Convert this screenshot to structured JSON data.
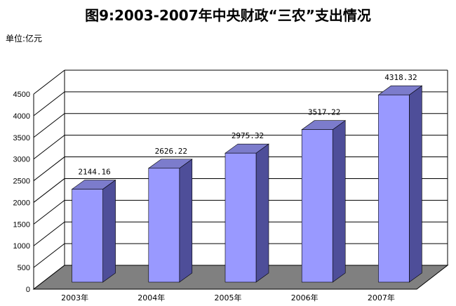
{
  "title": "图9:2003-2007年中央财政“三农”支出情况",
  "unit_label": "单位:亿元",
  "chart_data": {
    "type": "bar",
    "categories": [
      "2003年",
      "2004年",
      "2005年",
      "2006年",
      "2007年"
    ],
    "values": [
      2144.16,
      2626.22,
      2975.32,
      3517.22,
      4318.32
    ],
    "data_labels": [
      "2144.16",
      "2626.22",
      "2975.32",
      "3517.22",
      "4318.32"
    ],
    "title": "图9:2003-2007年中央财政“三农”支出情况",
    "ylabel": "单位:亿元",
    "ylim": [
      0,
      4500
    ],
    "yticks": [
      0,
      500,
      1000,
      1500,
      2000,
      2500,
      3000,
      3500,
      4000,
      4500
    ],
    "grid": true,
    "colors": {
      "bar_front": "#9999ff",
      "bar_top": "#7c7ccc",
      "bar_side": "#4e4e99",
      "floor": "#808080",
      "grid": "#000000"
    }
  }
}
